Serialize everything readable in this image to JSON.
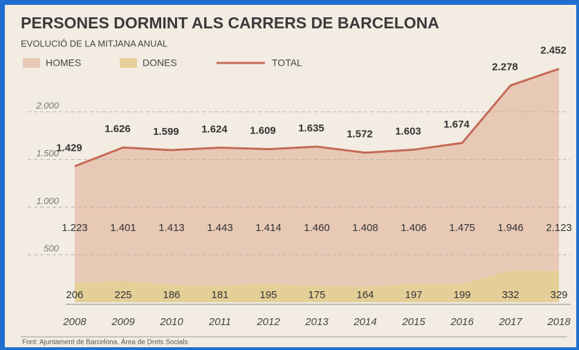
{
  "chart_data": {
    "type": "area",
    "title": "PERSONES DORMINT ALS CARRERS DE BARCELONA",
    "subtitle": "EVOLUCIÓ DE LA MITJANA ANUAL",
    "source": "Font: Ajuntament de Barcelona. Àrea de Drets Socials",
    "categories": [
      "2008",
      "2009",
      "2010",
      "2011",
      "2012",
      "2013",
      "2014",
      "2015",
      "2016",
      "2017",
      "2018"
    ],
    "stacked": true,
    "series": [
      {
        "name": "HOMES",
        "color": "#e8c9b6",
        "values": [
          1223,
          1401,
          1413,
          1443,
          1414,
          1460,
          1408,
          1406,
          1475,
          1946,
          2123
        ],
        "value_labels": [
          "1.223",
          "1.401",
          "1.413",
          "1.443",
          "1.414",
          "1.460",
          "1.408",
          "1.406",
          "1.475",
          "1.946",
          "2.123"
        ]
      },
      {
        "name": "DONES",
        "color": "#e4cf98",
        "values": [
          206,
          225,
          186,
          181,
          195,
          175,
          164,
          197,
          199,
          332,
          329
        ]
      },
      {
        "name": "TOTAL",
        "type": "line",
        "color": "#c46a55",
        "values": [
          1429,
          1626,
          1599,
          1624,
          1609,
          1635,
          1572,
          1603,
          1674,
          2278,
          2452
        ],
        "value_labels": [
          "1.429",
          "1.626",
          "1.599",
          "1.624",
          "1.609",
          "1.635",
          "1.572",
          "1.603",
          "1.674",
          "2.278",
          "2.452"
        ]
      }
    ],
    "ylim": [
      0,
      2500
    ],
    "yticks": [
      500,
      {
        "value": 1000,
        "label": "1.000"
      },
      {
        "value": 1500,
        "label": "1.500"
      },
      {
        "value": 2000,
        "label": "2.000"
      }
    ],
    "grid": true
  }
}
